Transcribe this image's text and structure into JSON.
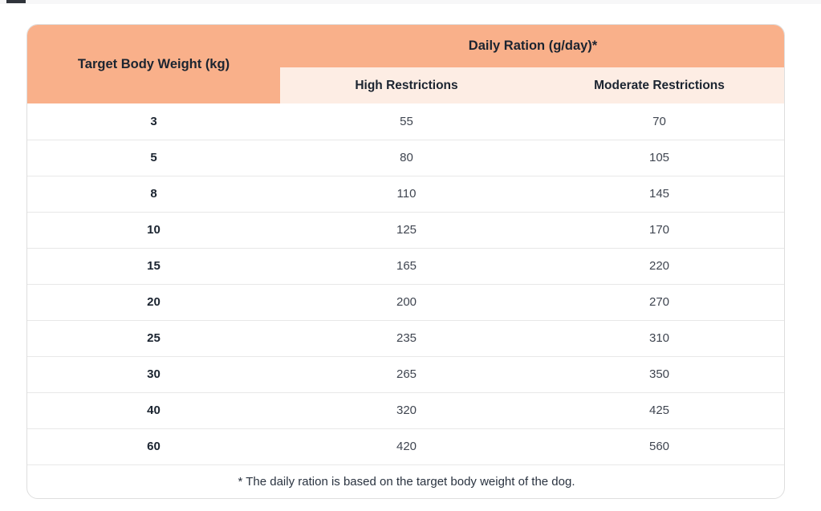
{
  "page": {
    "top_dash": "browser-edge-artifact"
  },
  "table": {
    "title": "Daily Ration (g/day)*",
    "col1_header": "Target Body Weight (kg)",
    "sub_headers": [
      "High Restrictions",
      "Moderate Restrictions"
    ],
    "footnote": "* The daily ration is based on the target body weight of the dog.",
    "colors": {
      "header_bg": "#f9b08a",
      "subheader_bg": "#fdede4",
      "header_text": "#1b2430",
      "cell_text": "#3f4550"
    }
  },
  "chart_data": {
    "type": "table",
    "title": "Daily Ration (g/day)*",
    "columns": [
      "Target Body Weight (kg)",
      "High Restrictions",
      "Moderate Restrictions"
    ],
    "rows": [
      [
        "3",
        "55",
        "70"
      ],
      [
        "5",
        "80",
        "105"
      ],
      [
        "8",
        "110",
        "145"
      ],
      [
        "10",
        "125",
        "170"
      ],
      [
        "15",
        "165",
        "220"
      ],
      [
        "20",
        "200",
        "270"
      ],
      [
        "25",
        "235",
        "310"
      ],
      [
        "30",
        "265",
        "350"
      ],
      [
        "40",
        "320",
        "425"
      ],
      [
        "60",
        "420",
        "560"
      ]
    ],
    "footnote": "* The daily ration is based on the target body weight of the dog.",
    "layout": "first column header spans two rows; title spans the two restriction columns; footnote row centered across all columns"
  }
}
